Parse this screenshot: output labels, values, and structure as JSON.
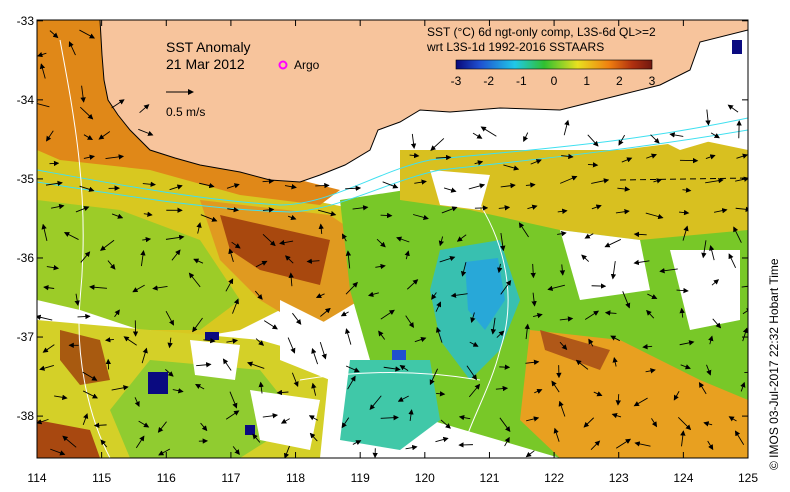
{
  "map": {
    "title": "SST Anomaly",
    "date": "21 Mar 2012",
    "argo_label": "Argo",
    "vector_scale_label": "0.5 m/s",
    "product_line1": "SST (°C) 6d ngt-only comp, L3S-6d QL>=2",
    "product_line2": "wrt L3S-1d 1992-2016 SSTAARS",
    "footer": "©  IMOS 03-Jul-2017 22:32 Hobart Time",
    "colors": {
      "land": "#f7c49c",
      "nodata": "#ffffff",
      "current_lines": "#40e0f0"
    },
    "colorbar": {
      "min": -3,
      "max": 3,
      "ticks": [
        "-3",
        "-2",
        "-1",
        "0",
        "1",
        "2",
        "3"
      ],
      "stops": [
        "#08087a",
        "#1f4fd0",
        "#20c8e8",
        "#30c030",
        "#e8e020",
        "#f08010",
        "#b03010",
        "#701810"
      ]
    },
    "x_ticks": [
      "114",
      "115",
      "116",
      "117",
      "118",
      "119",
      "120",
      "121",
      "122",
      "123",
      "124",
      "125"
    ],
    "y_ticks": [
      "-33",
      "-34",
      "-35",
      "-36",
      "-37",
      "-38"
    ]
  }
}
